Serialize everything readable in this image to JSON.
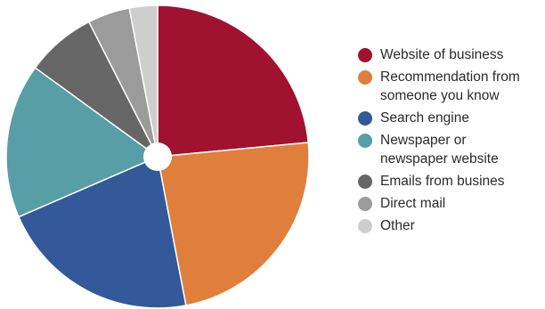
{
  "chart_data": {
    "type": "pie",
    "title": "",
    "slices": [
      {
        "label": "Website of business",
        "value": 23.5,
        "color": "#a0122f"
      },
      {
        "label": "Recommendation from\nsomeone you know",
        "value": 23.5,
        "color": "#e07f3c"
      },
      {
        "label": "Search engine",
        "value": 21.5,
        "color": "#34599a"
      },
      {
        "label": "Newspaper or\nnewspaper website",
        "value": 16.5,
        "color": "#579ea7"
      },
      {
        "label": "Emails from busines",
        "value": 7.5,
        "color": "#666666"
      },
      {
        "label": "Direct mail",
        "value": 4.5,
        "color": "#9b9b9b"
      },
      {
        "label": "Other",
        "value": 3.0,
        "color": "#cecece"
      }
    ],
    "legend_position": "right",
    "donut_hole": true
  }
}
